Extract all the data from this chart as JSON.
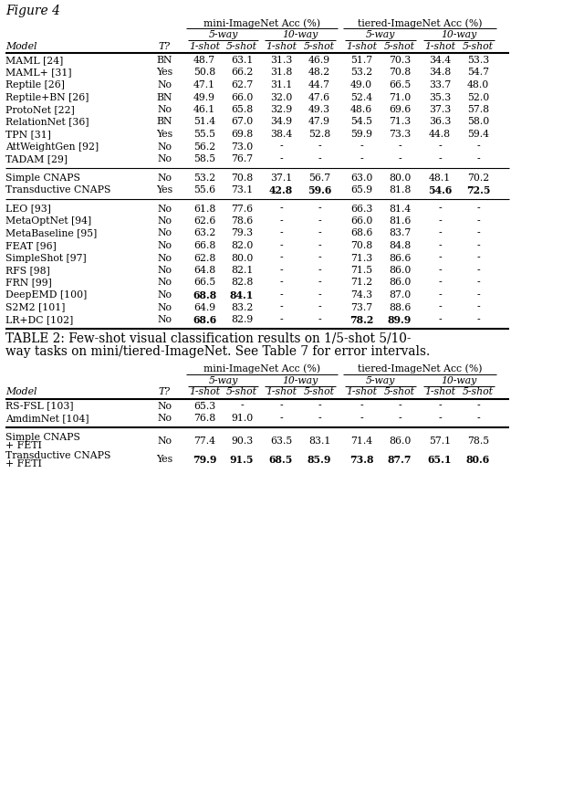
{
  "table1_rows": [
    {
      "model": "MAML [24]",
      "t": "BN",
      "vals": [
        "48.7",
        "63.1",
        "31.3",
        "46.9",
        "51.7",
        "70.3",
        "34.4",
        "53.3"
      ],
      "bold": []
    },
    {
      "model": "MAML+ [31]",
      "t": "Yes",
      "vals": [
        "50.8",
        "66.2",
        "31.8",
        "48.2",
        "53.2",
        "70.8",
        "34.8",
        "54.7"
      ],
      "bold": []
    },
    {
      "model": "Reptile [26]",
      "t": "No",
      "vals": [
        "47.1",
        "62.7",
        "31.1",
        "44.7",
        "49.0",
        "66.5",
        "33.7",
        "48.0"
      ],
      "bold": []
    },
    {
      "model": "Reptile+BN [26]",
      "t": "BN",
      "vals": [
        "49.9",
        "66.0",
        "32.0",
        "47.6",
        "52.4",
        "71.0",
        "35.3",
        "52.0"
      ],
      "bold": []
    },
    {
      "model": "ProtoNet [22]",
      "t": "No",
      "vals": [
        "46.1",
        "65.8",
        "32.9",
        "49.3",
        "48.6",
        "69.6",
        "37.3",
        "57.8"
      ],
      "bold": []
    },
    {
      "model": "RelationNet [36]",
      "t": "BN",
      "vals": [
        "51.4",
        "67.0",
        "34.9",
        "47.9",
        "54.5",
        "71.3",
        "36.3",
        "58.0"
      ],
      "bold": []
    },
    {
      "model": "TPN [31]",
      "t": "Yes",
      "vals": [
        "55.5",
        "69.8",
        "38.4",
        "52.8",
        "59.9",
        "73.3",
        "44.8",
        "59.4"
      ],
      "bold": []
    },
    {
      "model": "AttWeightGen [92]",
      "t": "No",
      "vals": [
        "56.2",
        "73.0",
        "-",
        "-",
        "-",
        "-",
        "-",
        "-"
      ],
      "bold": []
    },
    {
      "model": "TADAM [29]",
      "t": "No",
      "vals": [
        "58.5",
        "76.7",
        "-",
        "-",
        "-",
        "-",
        "-",
        "-"
      ],
      "bold": []
    }
  ],
  "table1_rows2": [
    {
      "model": "Simple CNAPS",
      "t": "No",
      "vals": [
        "53.2",
        "70.8",
        "37.1",
        "56.7",
        "63.0",
        "80.0",
        "48.1",
        "70.2"
      ],
      "bold": []
    },
    {
      "model": "Transductive CNAPS",
      "t": "Yes",
      "vals": [
        "55.6",
        "73.1",
        "42.8",
        "59.6",
        "65.9",
        "81.8",
        "54.6",
        "72.5"
      ],
      "bold": [
        2,
        3,
        6,
        7
      ]
    }
  ],
  "table1_rows3": [
    {
      "model": "LEO [93]",
      "t": "No",
      "vals": [
        "61.8",
        "77.6",
        "-",
        "-",
        "66.3",
        "81.4",
        "-",
        "-"
      ],
      "bold": []
    },
    {
      "model": "MetaOptNet [94]",
      "t": "No",
      "vals": [
        "62.6",
        "78.6",
        "-",
        "-",
        "66.0",
        "81.6",
        "-",
        "-"
      ],
      "bold": []
    },
    {
      "model": "MetaBaseline [95]",
      "t": "No",
      "vals": [
        "63.2",
        "79.3",
        "-",
        "-",
        "68.6",
        "83.7",
        "-",
        "-"
      ],
      "bold": []
    },
    {
      "model": "FEAT [96]",
      "t": "No",
      "vals": [
        "66.8",
        "82.0",
        "-",
        "-",
        "70.8",
        "84.8",
        "-",
        "-"
      ],
      "bold": []
    },
    {
      "model": "SimpleShot [97]",
      "t": "No",
      "vals": [
        "62.8",
        "80.0",
        "-",
        "-",
        "71.3",
        "86.6",
        "-",
        "-"
      ],
      "bold": []
    },
    {
      "model": "RFS [98]",
      "t": "No",
      "vals": [
        "64.8",
        "82.1",
        "-",
        "-",
        "71.5",
        "86.0",
        "-",
        "-"
      ],
      "bold": []
    },
    {
      "model": "FRN [99]",
      "t": "No",
      "vals": [
        "66.5",
        "82.8",
        "-",
        "-",
        "71.2",
        "86.0",
        "-",
        "-"
      ],
      "bold": []
    },
    {
      "model": "DeepEMD [100]",
      "t": "No",
      "vals": [
        "68.8",
        "84.1",
        "-",
        "-",
        "74.3",
        "87.0",
        "-",
        "-"
      ],
      "bold": [
        0,
        1
      ]
    },
    {
      "model": "S2M2 [101]",
      "t": "No",
      "vals": [
        "64.9",
        "83.2",
        "-",
        "-",
        "73.7",
        "88.6",
        "-",
        "-"
      ],
      "bold": []
    },
    {
      "model": "LR+DC [102]",
      "t": "No",
      "vals": [
        "68.6",
        "82.9",
        "-",
        "-",
        "78.2",
        "89.9",
        "-",
        "-"
      ],
      "bold": [
        0,
        4,
        5
      ]
    }
  ],
  "table2_rows1": [
    {
      "model": "RS-FSL [103]",
      "t": "No",
      "vals": [
        "65.3",
        "-",
        "-",
        "-",
        "-",
        "-",
        "-",
        "-"
      ],
      "bold": []
    },
    {
      "model": "AmdimNet [104]",
      "t": "No",
      "vals": [
        "76.8",
        "91.0",
        "-",
        "-",
        "-",
        "-",
        "-",
        "-"
      ],
      "bold": []
    }
  ],
  "table2_rows2": [
    {
      "model": "Simple CNAPS\n+ FETI",
      "t": "No",
      "vals": [
        "77.4",
        "90.3",
        "63.5",
        "83.1",
        "71.4",
        "86.0",
        "57.1",
        "78.5"
      ],
      "bold": []
    },
    {
      "model": "Transductive CNAPS\n+ FETI",
      "t": "Yes",
      "vals": [
        "79.9",
        "91.5",
        "68.5",
        "85.9",
        "73.8",
        "87.7",
        "65.1",
        "80.6"
      ],
      "bold": [
        0,
        1,
        2,
        3,
        4,
        5,
        6,
        7
      ]
    }
  ],
  "cap_line1": "TABLE 2: Few-shot visual classification results on 1/5-shot 5/10-",
  "cap_line2": "way tasks on mini/tiered-ImageNet. See Table 7 for error intervals.",
  "fig_title": "Figure 4"
}
